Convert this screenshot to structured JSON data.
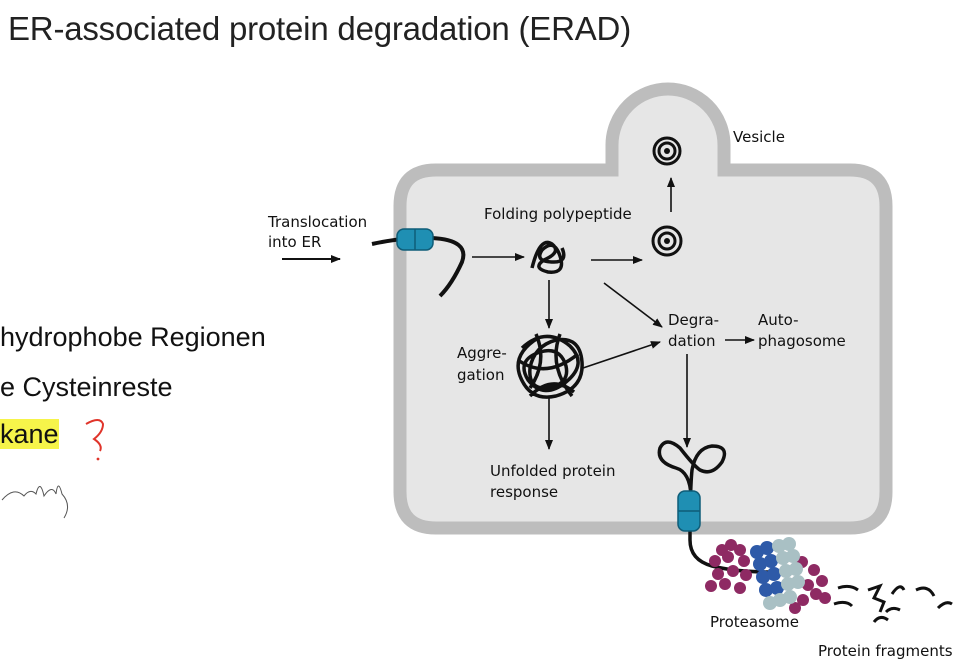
{
  "slide": {
    "title": "ER-associated protein degradation (ERAD)",
    "bullets": {
      "b1": "hydrophobe Regionen",
      "b2": "e Cysteinreste",
      "b3_highlight": "kane",
      "b3_mark": "?"
    }
  },
  "diagram": {
    "labels": {
      "vesicle": "Vesicle",
      "translocation_1": "Translocation",
      "translocation_2": "into ER",
      "folding": "Folding polypeptide",
      "aggregation_1": "Aggre-",
      "aggregation_2": "gation",
      "degradation_1": "Degra-",
      "degradation_2": "dation",
      "autophagosome_1": "Auto-",
      "autophagosome_2": "phagosome",
      "upr_1": "Unfolded protein",
      "upr_2": "response",
      "proteasome": "Proteasome",
      "fragments": "Protein fragments"
    }
  },
  "colors": {
    "er_fill": "#e6e6e6",
    "er_border": "#bdbdbd",
    "channel": "#1f8fb3",
    "highlight": "#f6f44a",
    "pen_red": "#e0342a",
    "proteasome_core": "#2e5aa8",
    "proteasome_ring": "#a9c0c4",
    "proteasome_cap": "#8e2a63"
  }
}
